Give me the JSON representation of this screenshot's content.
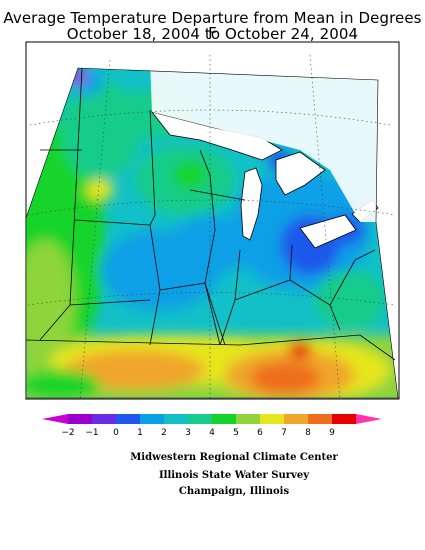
{
  "title_line1": "Average Temperature Departure from Mean in Degrees F",
  "title_line2": "October 18, 2004 to October 24, 2004",
  "legend": {
    "ticks": [
      "−2",
      "−1",
      "0",
      "1",
      "2",
      "3",
      "4",
      "5",
      "6",
      "7",
      "8",
      "9"
    ],
    "colors": [
      "#9900cc",
      "#6a2ae6",
      "#1e58ec",
      "#0aa0e6",
      "#12c0c8",
      "#16cc8a",
      "#14d42a",
      "#8ed43a",
      "#e6e61e",
      "#f0a62a",
      "#ee6e1e",
      "#e60000"
    ],
    "low_cap_color": "#cc00cc",
    "high_cap_color": "#ff33aa"
  },
  "credits": {
    "line1": "Midwestern Regional Climate Center",
    "line2": "Illinois State Water Survey",
    "line3": "Champaign, Illinois"
  }
}
